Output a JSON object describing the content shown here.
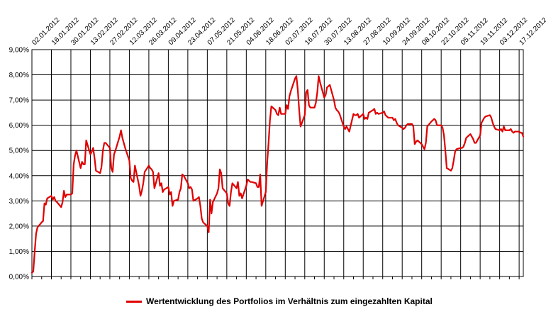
{
  "chart_data": {
    "type": "line",
    "title": "",
    "xlabel": "",
    "ylabel": "",
    "x_tick_labels": [
      "02.01.2012",
      "16.01.2012",
      "30.01.2012",
      "13.02.2012",
      "27.02.2012",
      "12.03.2012",
      "26.03.2012",
      "09.04.2012",
      "23.04.2012",
      "07.05.2012",
      "21.05.2012",
      "04.06.2012",
      "18.06.2012",
      "02.07.2012",
      "16.07.2012",
      "30.07.2012",
      "13.08.2012",
      "27.08.2012",
      "10.09.2012",
      "24.09.2012",
      "08.10.2012",
      "22.10.2012",
      "05.11.2012",
      "19.11.2012",
      "03.12.2012",
      "17.12.2012"
    ],
    "y_tick_labels": [
      "0,00%",
      "1,00%",
      "2,00%",
      "3,00%",
      "4,00%",
      "5,00%",
      "6,00%",
      "7,00%",
      "8,00%",
      "9,00%"
    ],
    "ylim": [
      0,
      9
    ],
    "grid": true,
    "legend_position": "bottom",
    "colors": {
      "series": "#e00000",
      "grid": "#000000"
    },
    "series": [
      {
        "name": "Wertentwicklung des Portfolios im Verhältnis zum eingezahlten Kapital",
        "points": [
          [
            "2012-01-02",
            0.15
          ],
          [
            "2012-01-03",
            0.2
          ],
          [
            "2012-01-04",
            1.0
          ],
          [
            "2012-01-05",
            1.7
          ],
          [
            "2012-01-06",
            1.95
          ],
          [
            "2012-01-09",
            2.15
          ],
          [
            "2012-01-10",
            2.2
          ],
          [
            "2012-01-11",
            2.9
          ],
          [
            "2012-01-12",
            2.85
          ],
          [
            "2012-01-13",
            3.1
          ],
          [
            "2012-01-16",
            3.2
          ],
          [
            "2012-01-17",
            3.05
          ],
          [
            "2012-01-18",
            3.15
          ],
          [
            "2012-01-19",
            3.0
          ],
          [
            "2012-01-20",
            2.95
          ],
          [
            "2012-01-23",
            2.75
          ],
          [
            "2012-01-24",
            2.95
          ],
          [
            "2012-01-25",
            3.4
          ],
          [
            "2012-01-26",
            3.15
          ],
          [
            "2012-01-27",
            3.25
          ],
          [
            "2012-01-30",
            3.25
          ],
          [
            "2012-01-31",
            3.3
          ],
          [
            "2012-02-01",
            4.45
          ],
          [
            "2012-02-02",
            4.8
          ],
          [
            "2012-02-03",
            5.0
          ],
          [
            "2012-02-06",
            4.3
          ],
          [
            "2012-02-07",
            4.55
          ],
          [
            "2012-02-08",
            4.45
          ],
          [
            "2012-02-09",
            4.45
          ],
          [
            "2012-02-10",
            5.4
          ],
          [
            "2012-02-13",
            4.85
          ],
          [
            "2012-02-14",
            4.95
          ],
          [
            "2012-02-15",
            5.1
          ],
          [
            "2012-02-16",
            4.7
          ],
          [
            "2012-02-17",
            4.2
          ],
          [
            "2012-02-20",
            4.1
          ],
          [
            "2012-02-21",
            4.35
          ],
          [
            "2012-02-22",
            5.0
          ],
          [
            "2012-02-23",
            5.3
          ],
          [
            "2012-02-24",
            5.3
          ],
          [
            "2012-02-27",
            5.1
          ],
          [
            "2012-02-28",
            4.3
          ],
          [
            "2012-02-29",
            4.15
          ],
          [
            "2012-03-01",
            4.85
          ],
          [
            "2012-03-02",
            5.0
          ],
          [
            "2012-03-05",
            5.55
          ],
          [
            "2012-03-06",
            5.8
          ],
          [
            "2012-03-07",
            5.5
          ],
          [
            "2012-03-08",
            5.3
          ],
          [
            "2012-03-09",
            5.1
          ],
          [
            "2012-03-12",
            4.6
          ],
          [
            "2012-03-13",
            3.9
          ],
          [
            "2012-03-14",
            3.8
          ],
          [
            "2012-03-15",
            3.75
          ],
          [
            "2012-03-16",
            4.4
          ],
          [
            "2012-03-19",
            3.6
          ],
          [
            "2012-03-20",
            3.2
          ],
          [
            "2012-03-21",
            3.4
          ],
          [
            "2012-03-22",
            3.7
          ],
          [
            "2012-03-23",
            4.15
          ],
          [
            "2012-03-26",
            4.4
          ],
          [
            "2012-03-27",
            4.3
          ],
          [
            "2012-03-28",
            4.25
          ],
          [
            "2012-03-29",
            4.15
          ],
          [
            "2012-03-30",
            3.5
          ],
          [
            "2012-04-02",
            4.1
          ],
          [
            "2012-04-03",
            3.6
          ],
          [
            "2012-04-04",
            3.7
          ],
          [
            "2012-04-05",
            3.35
          ],
          [
            "2012-04-06",
            3.45
          ],
          [
            "2012-04-09",
            3.55
          ],
          [
            "2012-04-10",
            3.25
          ],
          [
            "2012-04-11",
            3.35
          ],
          [
            "2012-04-12",
            2.8
          ],
          [
            "2012-04-13",
            3.0
          ],
          [
            "2012-04-16",
            3.05
          ],
          [
            "2012-04-17",
            3.35
          ],
          [
            "2012-04-18",
            3.5
          ],
          [
            "2012-04-19",
            4.05
          ],
          [
            "2012-04-20",
            4.0
          ],
          [
            "2012-04-23",
            3.7
          ],
          [
            "2012-04-24",
            3.5
          ],
          [
            "2012-04-25",
            3.55
          ],
          [
            "2012-04-26",
            3.45
          ],
          [
            "2012-04-27",
            3.0
          ],
          [
            "2012-04-30",
            3.1
          ],
          [
            "2012-05-01",
            3.15
          ],
          [
            "2012-05-02",
            2.8
          ],
          [
            "2012-05-03",
            2.3
          ],
          [
            "2012-05-04",
            2.15
          ],
          [
            "2012-05-07",
            2.0
          ],
          [
            "2012-05-08",
            1.75
          ],
          [
            "2012-05-09",
            3.05
          ],
          [
            "2012-05-10",
            2.5
          ],
          [
            "2012-05-11",
            2.95
          ],
          [
            "2012-05-14",
            3.3
          ],
          [
            "2012-05-15",
            3.5
          ],
          [
            "2012-05-16",
            4.25
          ],
          [
            "2012-05-17",
            4.1
          ],
          [
            "2012-05-18",
            3.5
          ],
          [
            "2012-05-21",
            3.3
          ],
          [
            "2012-05-22",
            2.9
          ],
          [
            "2012-05-23",
            2.8
          ],
          [
            "2012-05-24",
            3.35
          ],
          [
            "2012-05-25",
            3.7
          ],
          [
            "2012-05-28",
            3.5
          ],
          [
            "2012-05-29",
            3.75
          ],
          [
            "2012-05-30",
            3.2
          ],
          [
            "2012-05-31",
            3.3
          ],
          [
            "2012-06-01",
            3.1
          ],
          [
            "2012-06-04",
            3.6
          ],
          [
            "2012-06-05",
            3.85
          ],
          [
            "2012-06-06",
            3.8
          ],
          [
            "2012-06-07",
            3.75
          ],
          [
            "2012-06-08",
            3.75
          ],
          [
            "2012-06-11",
            3.7
          ],
          [
            "2012-06-12",
            3.55
          ],
          [
            "2012-06-13",
            3.55
          ],
          [
            "2012-06-14",
            4.05
          ],
          [
            "2012-06-15",
            2.8
          ],
          [
            "2012-06-18",
            3.35
          ],
          [
            "2012-06-19",
            4.5
          ],
          [
            "2012-06-20",
            5.3
          ],
          [
            "2012-06-21",
            6.2
          ],
          [
            "2012-06-22",
            6.75
          ],
          [
            "2012-06-25",
            6.6
          ],
          [
            "2012-06-26",
            6.45
          ],
          [
            "2012-06-27",
            6.4
          ],
          [
            "2012-06-28",
            6.7
          ],
          [
            "2012-06-29",
            6.45
          ],
          [
            "2012-07-02",
            6.45
          ],
          [
            "2012-07-03",
            6.8
          ],
          [
            "2012-07-04",
            6.65
          ],
          [
            "2012-07-05",
            7.15
          ],
          [
            "2012-07-06",
            7.35
          ],
          [
            "2012-07-09",
            7.85
          ],
          [
            "2012-07-10",
            7.95
          ],
          [
            "2012-07-11",
            7.4
          ],
          [
            "2012-07-12",
            6.6
          ],
          [
            "2012-07-13",
            5.95
          ],
          [
            "2012-07-16",
            6.4
          ],
          [
            "2012-07-17",
            7.3
          ],
          [
            "2012-07-18",
            7.4
          ],
          [
            "2012-07-19",
            6.8
          ],
          [
            "2012-07-20",
            6.7
          ],
          [
            "2012-07-23",
            6.7
          ],
          [
            "2012-07-24",
            6.9
          ],
          [
            "2012-07-25",
            7.3
          ],
          [
            "2012-07-26",
            7.95
          ],
          [
            "2012-07-27",
            7.7
          ],
          [
            "2012-07-30",
            7.1
          ],
          [
            "2012-07-31",
            7.2
          ],
          [
            "2012-08-01",
            7.5
          ],
          [
            "2012-08-02",
            7.55
          ],
          [
            "2012-08-03",
            7.6
          ],
          [
            "2012-08-06",
            7.0
          ],
          [
            "2012-08-07",
            6.7
          ],
          [
            "2012-08-08",
            6.6
          ],
          [
            "2012-08-09",
            6.55
          ],
          [
            "2012-08-10",
            6.45
          ],
          [
            "2012-08-13",
            5.95
          ],
          [
            "2012-08-14",
            5.85
          ],
          [
            "2012-08-15",
            5.95
          ],
          [
            "2012-08-16",
            5.85
          ],
          [
            "2012-08-17",
            5.75
          ],
          [
            "2012-08-20",
            6.45
          ],
          [
            "2012-08-21",
            6.4
          ],
          [
            "2012-08-22",
            6.4
          ],
          [
            "2012-08-23",
            6.45
          ],
          [
            "2012-08-24",
            6.3
          ],
          [
            "2012-08-27",
            6.45
          ],
          [
            "2012-08-28",
            6.25
          ],
          [
            "2012-08-29",
            6.3
          ],
          [
            "2012-08-30",
            6.25
          ],
          [
            "2012-08-31",
            6.5
          ],
          [
            "2012-09-03",
            6.6
          ],
          [
            "2012-09-04",
            6.65
          ],
          [
            "2012-09-05",
            6.45
          ],
          [
            "2012-09-06",
            6.5
          ],
          [
            "2012-09-07",
            6.45
          ],
          [
            "2012-09-10",
            6.5
          ],
          [
            "2012-09-11",
            6.55
          ],
          [
            "2012-09-12",
            6.4
          ],
          [
            "2012-09-13",
            6.35
          ],
          [
            "2012-09-14",
            6.3
          ],
          [
            "2012-09-17",
            6.3
          ],
          [
            "2012-09-18",
            6.2
          ],
          [
            "2012-09-19",
            6.25
          ],
          [
            "2012-09-20",
            6.1
          ],
          [
            "2012-09-21",
            6.0
          ],
          [
            "2012-09-24",
            5.9
          ],
          [
            "2012-09-25",
            5.85
          ],
          [
            "2012-09-26",
            5.9
          ],
          [
            "2012-09-27",
            6.0
          ],
          [
            "2012-09-28",
            6.05
          ],
          [
            "2012-10-01",
            6.05
          ],
          [
            "2012-10-02",
            5.95
          ],
          [
            "2012-10-03",
            5.25
          ],
          [
            "2012-10-04",
            5.35
          ],
          [
            "2012-10-05",
            5.4
          ],
          [
            "2012-10-08",
            5.25
          ],
          [
            "2012-10-09",
            5.15
          ],
          [
            "2012-10-10",
            5.05
          ],
          [
            "2012-10-11",
            5.3
          ],
          [
            "2012-10-12",
            5.95
          ],
          [
            "2012-10-15",
            6.15
          ],
          [
            "2012-10-16",
            6.2
          ],
          [
            "2012-10-17",
            6.25
          ],
          [
            "2012-10-18",
            6.2
          ],
          [
            "2012-10-19",
            6.0
          ],
          [
            "2012-10-22",
            6.0
          ],
          [
            "2012-10-23",
            5.9
          ],
          [
            "2012-10-24",
            5.6
          ],
          [
            "2012-10-25",
            5.0
          ],
          [
            "2012-10-26",
            4.3
          ],
          [
            "2012-10-29",
            4.2
          ],
          [
            "2012-10-30",
            4.3
          ],
          [
            "2012-10-31",
            4.6
          ],
          [
            "2012-11-01",
            4.95
          ],
          [
            "2012-11-02",
            5.05
          ],
          [
            "2012-11-05",
            5.1
          ],
          [
            "2012-11-06",
            5.1
          ],
          [
            "2012-11-07",
            5.15
          ],
          [
            "2012-11-08",
            5.3
          ],
          [
            "2012-11-09",
            5.5
          ],
          [
            "2012-11-12",
            5.65
          ],
          [
            "2012-11-13",
            5.55
          ],
          [
            "2012-11-14",
            5.45
          ],
          [
            "2012-11-15",
            5.3
          ],
          [
            "2012-11-16",
            5.3
          ],
          [
            "2012-11-19",
            5.6
          ],
          [
            "2012-11-20",
            6.1
          ],
          [
            "2012-11-21",
            6.2
          ],
          [
            "2012-11-22",
            6.3
          ],
          [
            "2012-11-23",
            6.35
          ],
          [
            "2012-11-26",
            6.4
          ],
          [
            "2012-11-27",
            6.3
          ],
          [
            "2012-11-28",
            6.1
          ],
          [
            "2012-11-29",
            5.95
          ],
          [
            "2012-11-30",
            5.85
          ],
          [
            "2012-12-03",
            5.8
          ],
          [
            "2012-12-04",
            5.85
          ],
          [
            "2012-12-05",
            5.75
          ],
          [
            "2012-12-06",
            5.95
          ],
          [
            "2012-12-07",
            5.8
          ],
          [
            "2012-12-10",
            5.8
          ],
          [
            "2012-12-11",
            5.85
          ],
          [
            "2012-12-12",
            5.75
          ],
          [
            "2012-12-13",
            5.7
          ],
          [
            "2012-12-14",
            5.75
          ],
          [
            "2012-12-17",
            5.75
          ],
          [
            "2012-12-18",
            5.7
          ],
          [
            "2012-12-19",
            5.7
          ],
          [
            "2012-12-20",
            5.55
          ]
        ]
      }
    ]
  }
}
